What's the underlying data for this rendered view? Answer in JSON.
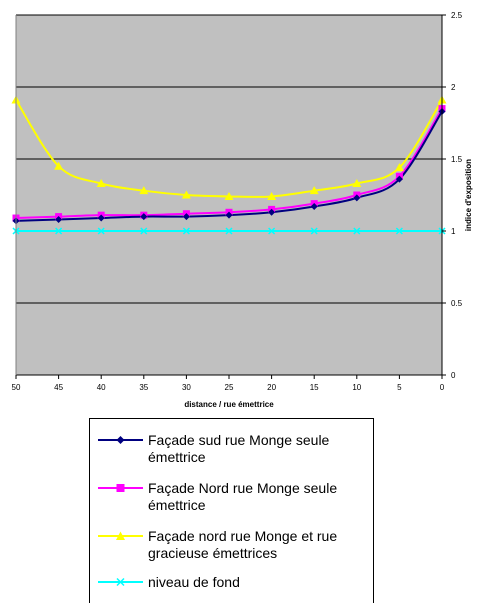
{
  "chart_data": {
    "type": "line",
    "title": "",
    "xlabel": "distance / rue émettrice",
    "ylabel": "indice d'exposition",
    "x": [
      50,
      45,
      40,
      35,
      30,
      25,
      20,
      15,
      10,
      5,
      0
    ],
    "x_reversed": true,
    "xticks": [
      "50",
      "45",
      "40",
      "35",
      "30",
      "25",
      "20",
      "15",
      "10",
      "5",
      "0"
    ],
    "ylim": [
      0,
      2.5
    ],
    "yticks": [
      "0",
      "0.5",
      "1",
      "1.5",
      "2",
      "2.5"
    ],
    "y_axis_side": "right",
    "grid": true,
    "plot_background": "#c0c0c0",
    "legend_position": "bottom",
    "series": [
      {
        "name": "Façade sud rue Monge seule émettrice",
        "color": "#000080",
        "marker": "diamond",
        "values": [
          1.07,
          1.08,
          1.09,
          1.1,
          1.1,
          1.11,
          1.13,
          1.17,
          1.23,
          1.36,
          1.83
        ]
      },
      {
        "name": "Façade Nord rue Monge seule émettrice",
        "color": "#ff00ff",
        "marker": "square",
        "values": [
          1.09,
          1.1,
          1.11,
          1.11,
          1.12,
          1.13,
          1.15,
          1.19,
          1.25,
          1.38,
          1.85
        ]
      },
      {
        "name": "Façade nord rue Monge et rue gracieuse émettrices",
        "color": "#ffff00",
        "marker": "triangle",
        "values": [
          1.91,
          1.45,
          1.33,
          1.28,
          1.25,
          1.24,
          1.24,
          1.28,
          1.33,
          1.44,
          1.91
        ]
      },
      {
        "name": "niveau de fond",
        "color": "#00ffff",
        "marker": "cross",
        "values": [
          1.0,
          1.0,
          1.0,
          1.0,
          1.0,
          1.0,
          1.0,
          1.0,
          1.0,
          1.0,
          1.0
        ]
      }
    ]
  }
}
